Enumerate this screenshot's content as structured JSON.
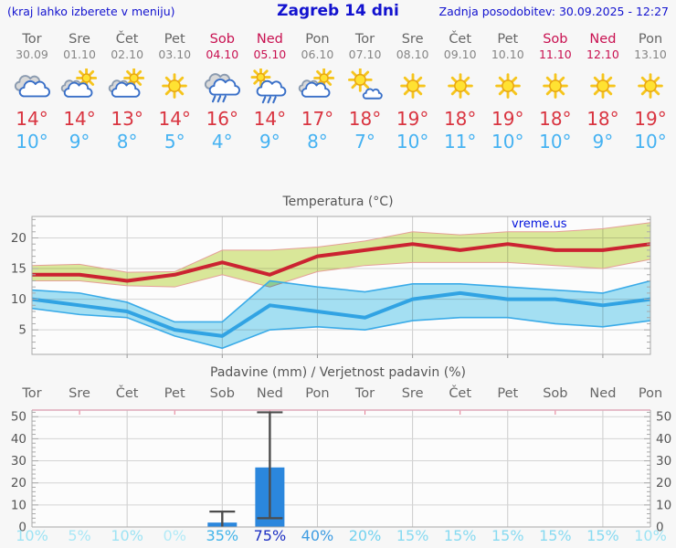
{
  "header": {
    "left_note": "(kraj lahko izberete v meniju)",
    "title": "Zagreb 14 dni",
    "updated": "Zadnja posodobitev: 30.09.2025 - 12:27"
  },
  "colors": {
    "header_blue": "#1212cf",
    "weekend_red": "#c81050",
    "day_gray": "#666666",
    "temp_max_red": "#d93440",
    "temp_min_blue": "#45b2f2"
  },
  "days": [
    {
      "name": "Tor",
      "date": "30.09",
      "weekend": false,
      "icon": "cloudy",
      "tmax": "14°",
      "tmin": "10°"
    },
    {
      "name": "Sre",
      "date": "01.10",
      "weekend": false,
      "icon": "partly-cloudy",
      "tmax": "14°",
      "tmin": "9°"
    },
    {
      "name": "Čet",
      "date": "02.10",
      "weekend": false,
      "icon": "partly-cloudy",
      "tmax": "13°",
      "tmin": "8°"
    },
    {
      "name": "Pet",
      "date": "03.10",
      "weekend": false,
      "icon": "sunny",
      "tmax": "14°",
      "tmin": "5°"
    },
    {
      "name": "Sob",
      "date": "04.10",
      "weekend": true,
      "icon": "rain",
      "tmax": "16°",
      "tmin": "4°"
    },
    {
      "name": "Ned",
      "date": "05.10",
      "weekend": true,
      "icon": "sun-shower",
      "tmax": "14°",
      "tmin": "9°"
    },
    {
      "name": "Pon",
      "date": "06.10",
      "weekend": false,
      "icon": "partly-cloudy",
      "tmax": "17°",
      "tmin": "8°"
    },
    {
      "name": "Tor",
      "date": "07.10",
      "weekend": false,
      "icon": "mostly-sunny",
      "tmax": "18°",
      "tmin": "7°"
    },
    {
      "name": "Sre",
      "date": "08.10",
      "weekend": false,
      "icon": "sunny",
      "tmax": "19°",
      "tmin": "10°"
    },
    {
      "name": "Čet",
      "date": "09.10",
      "weekend": false,
      "icon": "sunny",
      "tmax": "18°",
      "tmin": "11°"
    },
    {
      "name": "Pet",
      "date": "10.10",
      "weekend": false,
      "icon": "sunny",
      "tmax": "19°",
      "tmin": "10°"
    },
    {
      "name": "Sob",
      "date": "11.10",
      "weekend": true,
      "icon": "sunny",
      "tmax": "18°",
      "tmin": "10°"
    },
    {
      "name": "Ned",
      "date": "12.10",
      "weekend": true,
      "icon": "sunny",
      "tmax": "18°",
      "tmin": "9°"
    },
    {
      "name": "Pon",
      "date": "13.10",
      "weekend": false,
      "icon": "sunny",
      "tmax": "19°",
      "tmin": "10°"
    }
  ],
  "chart_data": [
    {
      "type": "line",
      "title": "Temperatura (°C)",
      "watermark": "vreme.us",
      "x_categories": [
        "Tor",
        "Sre",
        "Čet",
        "Pet",
        "Sob",
        "Ned",
        "Pon",
        "Tor",
        "Sre",
        "Čet",
        "Pet",
        "Sob",
        "Ned",
        "Pon"
      ],
      "ylim": [
        1,
        23.5
      ],
      "yticks": [
        5,
        10,
        15,
        20
      ],
      "grid_x_indices": [
        2,
        4,
        6,
        8,
        10,
        12
      ],
      "series": [
        {
          "name": "max-temp",
          "color": "#cb2331",
          "values": [
            14,
            14,
            13,
            14,
            16,
            14,
            17,
            18,
            19,
            18,
            19,
            18,
            18,
            19
          ]
        },
        {
          "name": "min-temp",
          "color": "#31a3e3",
          "values": [
            10,
            9,
            8,
            5,
            4,
            9,
            8,
            7,
            10,
            11,
            10,
            10,
            9,
            10
          ]
        }
      ],
      "bands": [
        {
          "name": "max-range",
          "fill": "#dcea9b",
          "edge": "#e59f98",
          "high": [
            15.5,
            15.7,
            14.4,
            14.5,
            18,
            18,
            18.5,
            19.5,
            21,
            20.5,
            21,
            21,
            21.5,
            22.5
          ],
          "low": [
            13,
            13,
            12.2,
            12,
            14,
            12,
            14.5,
            15.5,
            16,
            16,
            16,
            15.5,
            15,
            16.5
          ]
        },
        {
          "name": "min-range",
          "fill": "#a6e2f5",
          "edge": "#3aabe8",
          "high": [
            11.5,
            11,
            9.5,
            6.3,
            6.3,
            13,
            12,
            11.2,
            12.5,
            12.5,
            12,
            11.5,
            11,
            13
          ],
          "low": [
            8.5,
            7.5,
            7,
            4,
            2,
            5,
            5.5,
            5,
            6.5,
            7,
            7,
            6,
            5.5,
            6.5
          ]
        }
      ]
    },
    {
      "type": "bar",
      "title": "Padavine (mm) / Verjetnost padavin (%)",
      "x_categories": [
        "Tor",
        "Sre",
        "Čet",
        "Pet",
        "Sob",
        "Ned",
        "Pon",
        "Tor",
        "Sre",
        "Čet",
        "Pet",
        "Sob",
        "Ned",
        "Pon"
      ],
      "weekend_indices": [
        4,
        5,
        11,
        12
      ],
      "ylim": [
        0,
        53
      ],
      "yticks": [
        0,
        10,
        20,
        30,
        40,
        50
      ],
      "bar_color": "#2b87dd",
      "values_mm": [
        0,
        0,
        0,
        0,
        2,
        27,
        0,
        0,
        0,
        0,
        0,
        0,
        0,
        0
      ],
      "whiskers": [
        {
          "day_index": 4,
          "low": 0,
          "high": 7
        },
        {
          "day_index": 5,
          "low": 4,
          "high": 52
        }
      ],
      "probabilities": [
        10,
        5,
        10,
        0,
        35,
        75,
        40,
        20,
        15,
        15,
        15,
        15,
        15,
        10
      ],
      "probability_colors": [
        "#9de3f4",
        "#a9e7f6",
        "#9de3f4",
        "#b2eaf7",
        "#43b4e9",
        "#1d30c3",
        "#3e9ce2",
        "#72d2ef",
        "#87daf1",
        "#87daf1",
        "#87daf1",
        "#87daf1",
        "#87daf1",
        "#9de3f4"
      ]
    }
  ]
}
